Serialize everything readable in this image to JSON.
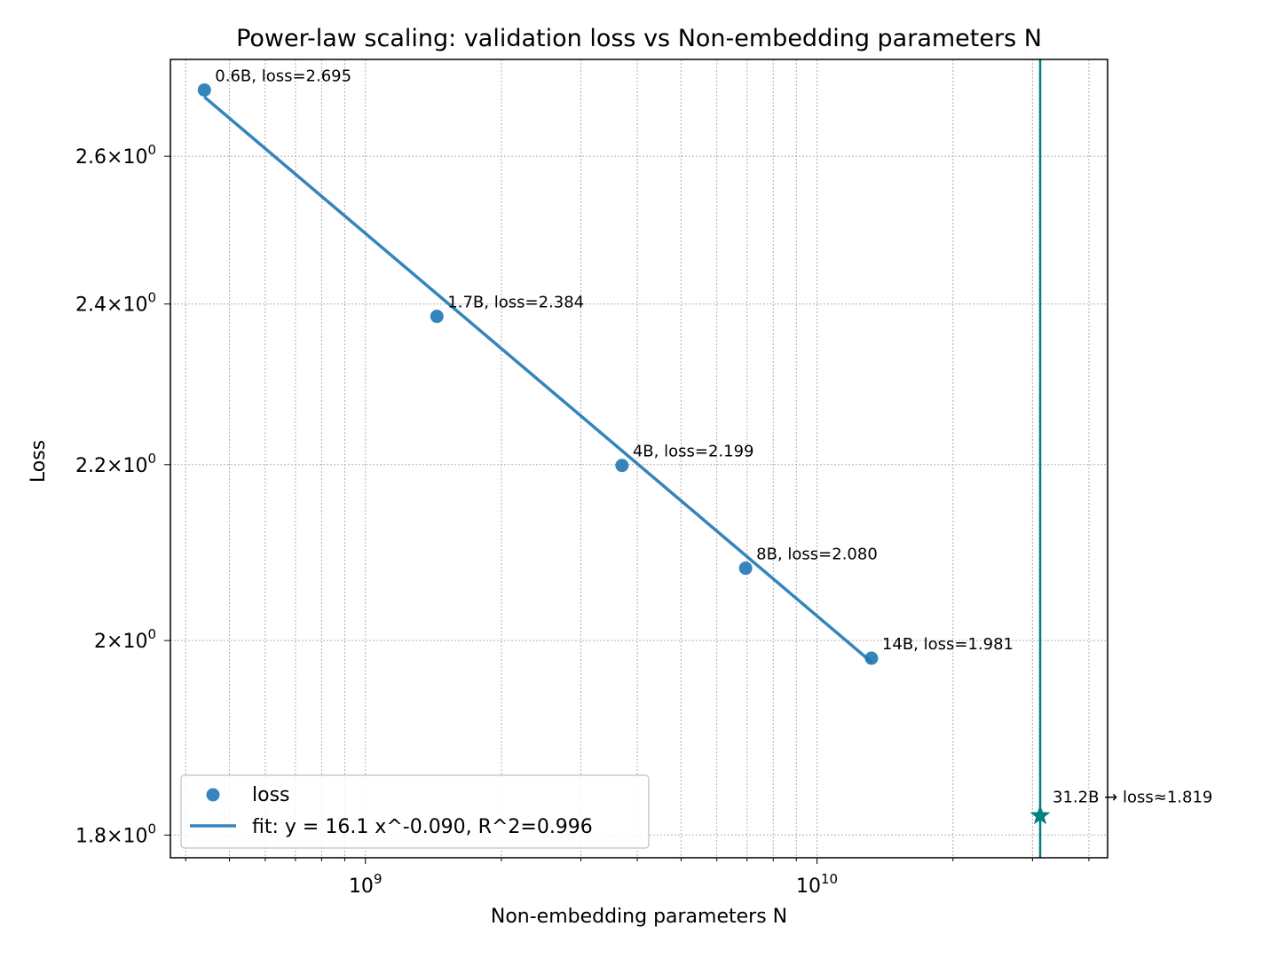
{
  "chart_data": {
    "type": "scatter",
    "title": "Power-law scaling: validation loss vs Non-embedding parameters N",
    "xlabel": "Non-embedding parameters N",
    "ylabel": "Loss",
    "xscale": "log",
    "yscale": "log",
    "xlim": [
      370000000,
      44000000000
    ],
    "ylim": [
      1.778,
      2.74
    ],
    "grid": true,
    "legend_position": "lower-left",
    "x_tick_labels": [
      {
        "value": 1000000000,
        "base": "10",
        "exp": "9"
      },
      {
        "value": 10000000000,
        "base": "10",
        "exp": "10"
      }
    ],
    "y_tick_labels": [
      {
        "value": 1.8,
        "mantissa": "1.8",
        "base": "10",
        "exp": "0"
      },
      {
        "value": 2.0,
        "mantissa": "2",
        "base": "10",
        "exp": "0"
      },
      {
        "value": 2.2,
        "mantissa": "2.2",
        "base": "10",
        "exp": "0"
      },
      {
        "value": 2.4,
        "mantissa": "2.4",
        "base": "10",
        "exp": "0"
      },
      {
        "value": 2.6,
        "mantissa": "2.6",
        "base": "10",
        "exp": "0"
      }
    ],
    "series": [
      {
        "name": "loss",
        "kind": "scatter",
        "color": "#1f77b4",
        "points": [
          {
            "x": 440000000,
            "y": 2.695,
            "label": "0.6B, loss=2.695"
          },
          {
            "x": 1440000000,
            "y": 2.384,
            "label": "1.7B, loss=2.384"
          },
          {
            "x": 3700000000,
            "y": 2.199,
            "label": "4B, loss=2.199"
          },
          {
            "x": 6950000000,
            "y": 2.08,
            "label": "8B, loss=2.080"
          },
          {
            "x": 13200000000,
            "y": 1.981,
            "label": "14B, loss=1.981"
          }
        ]
      },
      {
        "name": "fit: y = 16.1 x^-0.090, R^2=0.996",
        "kind": "line",
        "color": "#1f77b4",
        "a": 16.1,
        "b": -0.09,
        "x_range": [
          440000000,
          13200000000
        ]
      }
    ],
    "prediction": {
      "x": 31200000000,
      "y": 1.819,
      "label": "31.2B → loss≈1.819",
      "color": "#008080",
      "vline": true
    }
  }
}
